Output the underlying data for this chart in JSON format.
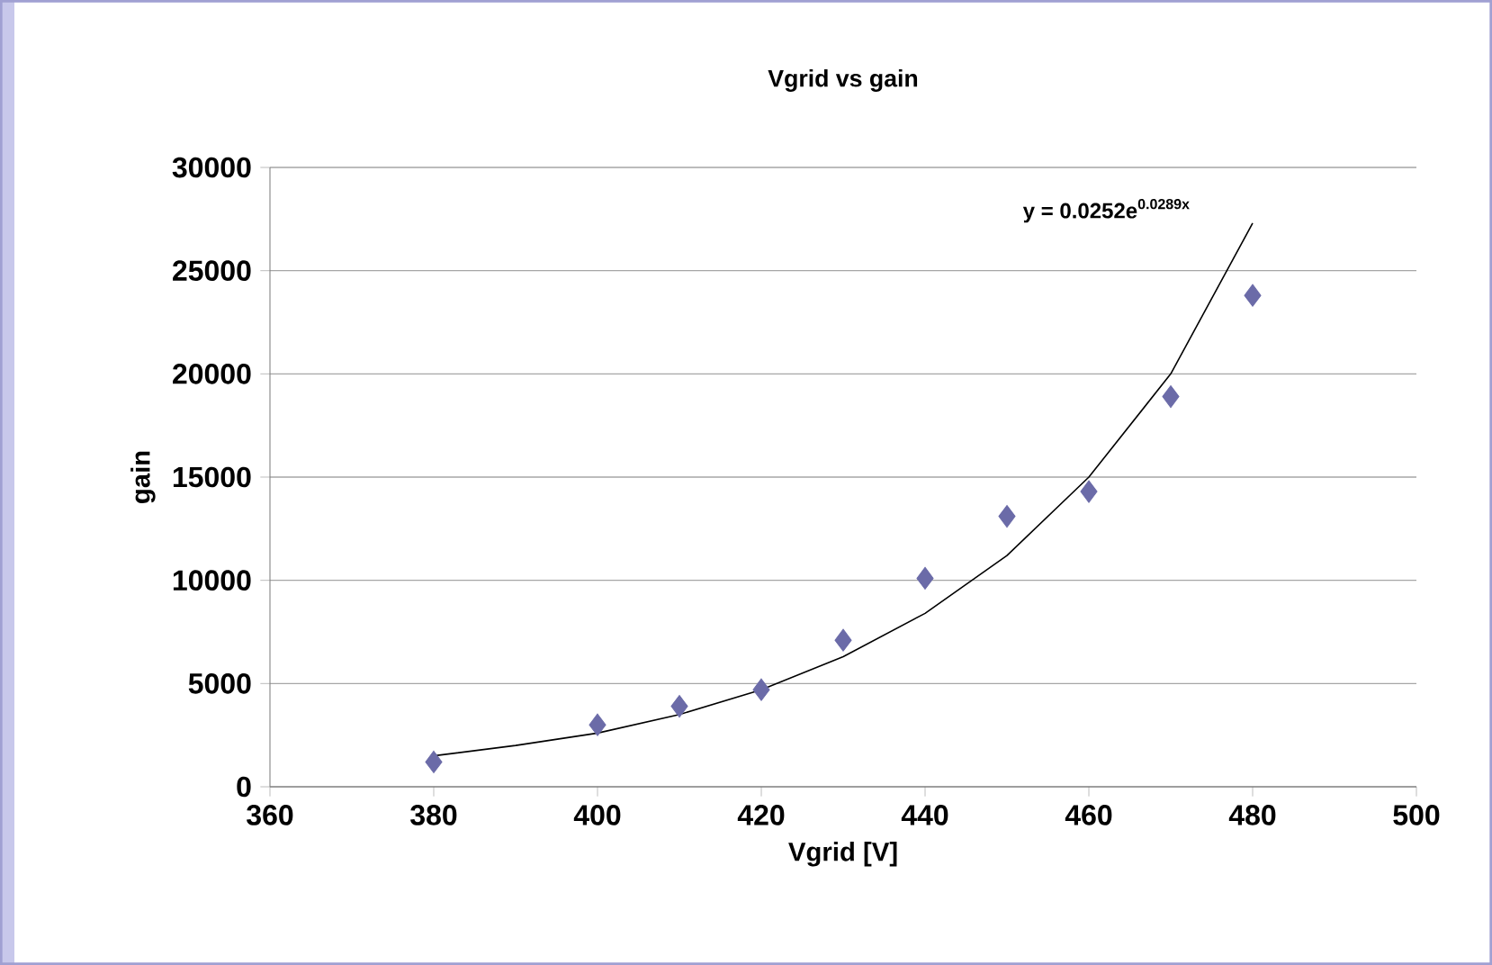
{
  "chart_data": {
    "type": "scatter",
    "title": "Vgrid vs gain",
    "xlabel": "Vgrid [V]",
    "ylabel": "gain",
    "series": [
      {
        "color": "#6b6ba8",
        "marker": "diamond",
        "x": [
          380,
          400,
          410,
          420,
          430,
          440,
          450,
          460,
          470,
          480
        ],
        "values": [
          1200,
          3000,
          3900,
          4700,
          7100,
          10100,
          13100,
          14300,
          18900,
          23800
        ]
      },
      {
        "type": "line",
        "color": "#000000",
        "marker": "none",
        "line_style": "solid",
        "x": [
          380,
          390,
          400,
          410,
          420,
          430,
          440,
          450,
          460,
          470,
          480
        ],
        "values": [
          1500,
          2000,
          2600,
          3500,
          4700,
          6300,
          8400,
          11200,
          15000,
          20000,
          27300
        ]
      }
    ],
    "annotations": [
      "y = 0.0252e$^{0.0289x}$"
    ],
    "xlim": [
      360,
      500
    ],
    "xticks": [
      360,
      380,
      400,
      420,
      440,
      460,
      480,
      500
    ],
    "ylim": [
      0,
      30000
    ],
    "yticks": [
      0,
      5000,
      10000,
      15000,
      20000,
      25000,
      30000
    ],
    "grid": "y"
  }
}
